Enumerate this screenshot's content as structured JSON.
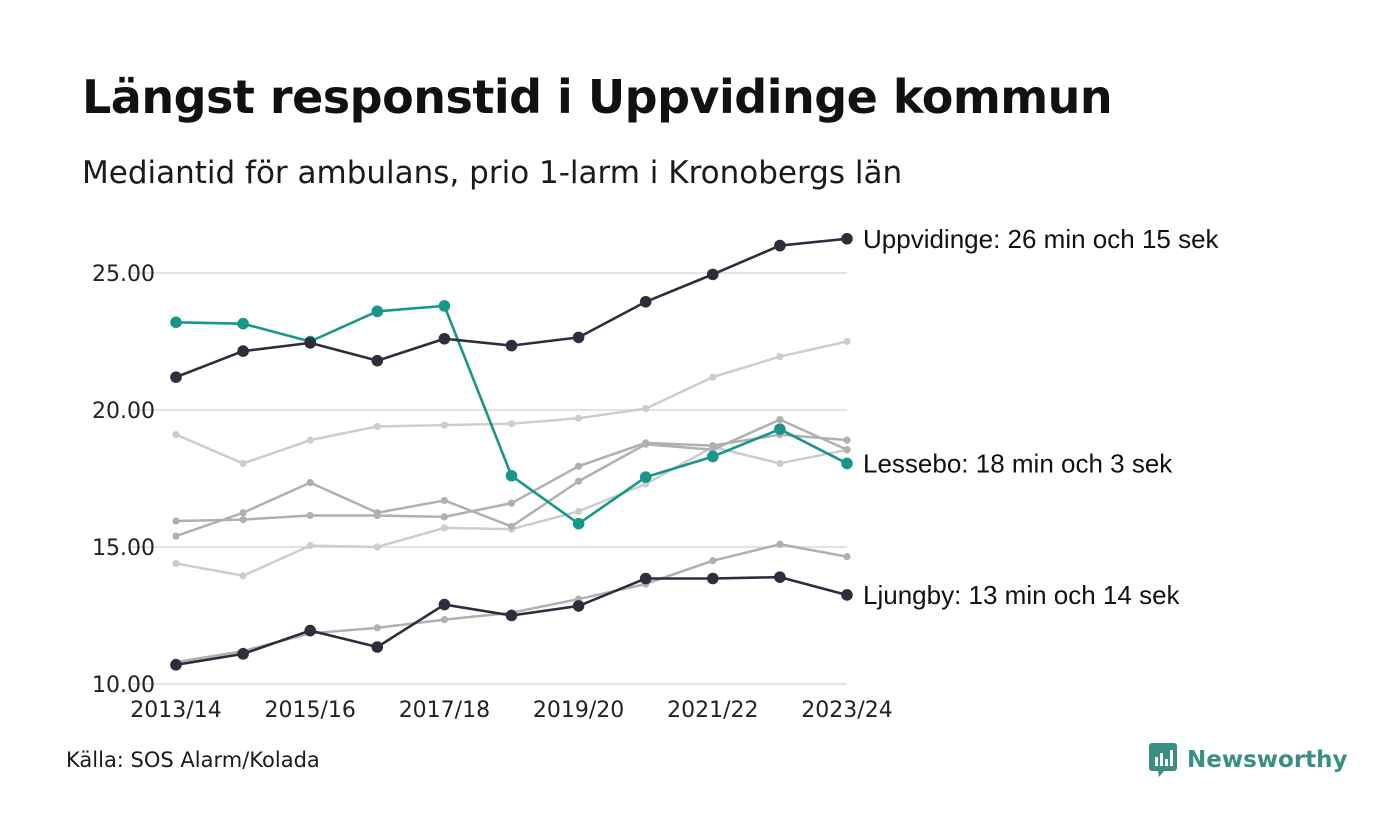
{
  "title": "Längst responstid i Uppvidinge kommun",
  "subtitle": "Mediantid för ambulans, prio 1-larm i Kronobergs län",
  "source": "Källa: SOS Alarm/Kolada",
  "brand": {
    "name": "Newsworthy",
    "icon": "newsworthy-logo-icon"
  },
  "colors": {
    "highlight_dark": "#2e2d3d",
    "highlight_teal": "#17968a",
    "background_light": "#cdcdcd",
    "background_mid": "#b0b0b0",
    "grid": "#e3e3e6",
    "brand": "#3a8f85"
  },
  "chart_data": {
    "type": "line",
    "x": [
      "2013/14",
      "2014/15",
      "2015/16",
      "2016/17",
      "2017/18",
      "2018/19",
      "2019/20",
      "2020/21",
      "2021/22",
      "2022/23",
      "2023/24"
    ],
    "x_tick_labels": [
      "2013/14",
      "2015/16",
      "2017/18",
      "2019/20",
      "2021/22",
      "2023/24"
    ],
    "y_ticks": [
      "10.00",
      "15.00",
      "20.00",
      "25.00"
    ],
    "ylim": [
      10,
      26.5
    ],
    "grid": "horizontal",
    "legend": "none",
    "series": [
      {
        "values": [
          19.1,
          18.05,
          18.9,
          19.4,
          19.45,
          19.5,
          19.7,
          20.05,
          21.2,
          21.95,
          22.5
        ],
        "style": "background_light"
      },
      {
        "values": [
          14.4,
          13.95,
          15.05,
          15.0,
          15.7,
          15.65,
          16.3,
          17.3,
          18.65,
          18.05,
          18.55
        ],
        "style": "background_light"
      },
      {
        "values": [
          15.95,
          16.0,
          16.15,
          16.15,
          16.1,
          16.6,
          17.95,
          18.8,
          18.7,
          19.1,
          18.9
        ],
        "style": "background_mid"
      },
      {
        "values": [
          15.4,
          16.25,
          17.35,
          16.25,
          16.7,
          15.75,
          17.4,
          18.75,
          18.55,
          19.65,
          18.55
        ],
        "style": "background_mid"
      },
      {
        "values": [
          10.8,
          11.2,
          11.85,
          12.05,
          12.35,
          12.6,
          13.1,
          13.65,
          14.5,
          15.1,
          14.65
        ],
        "style": "background_mid"
      },
      {
        "name": "Lessebo",
        "label": "Lessebo: 18 min och 3 sek",
        "values": [
          23.2,
          23.15,
          22.5,
          23.6,
          23.8,
          17.6,
          15.85,
          17.55,
          18.3,
          19.3,
          18.05
        ],
        "style": "highlight_teal"
      },
      {
        "name": "Uppvidinge",
        "label": "Uppvidinge: 26 min och 15 sek",
        "values": [
          21.2,
          22.15,
          22.45,
          21.8,
          22.6,
          22.35,
          22.65,
          23.95,
          24.95,
          26.0,
          26.25
        ],
        "style": "highlight_dark"
      },
      {
        "name": "Ljungby",
        "label": "Ljungby: 13 min och 14 sek",
        "values": [
          10.7,
          11.1,
          11.95,
          11.35,
          12.9,
          12.5,
          12.85,
          13.85,
          13.85,
          13.9,
          13.25
        ],
        "style": "highlight_dark"
      }
    ]
  }
}
